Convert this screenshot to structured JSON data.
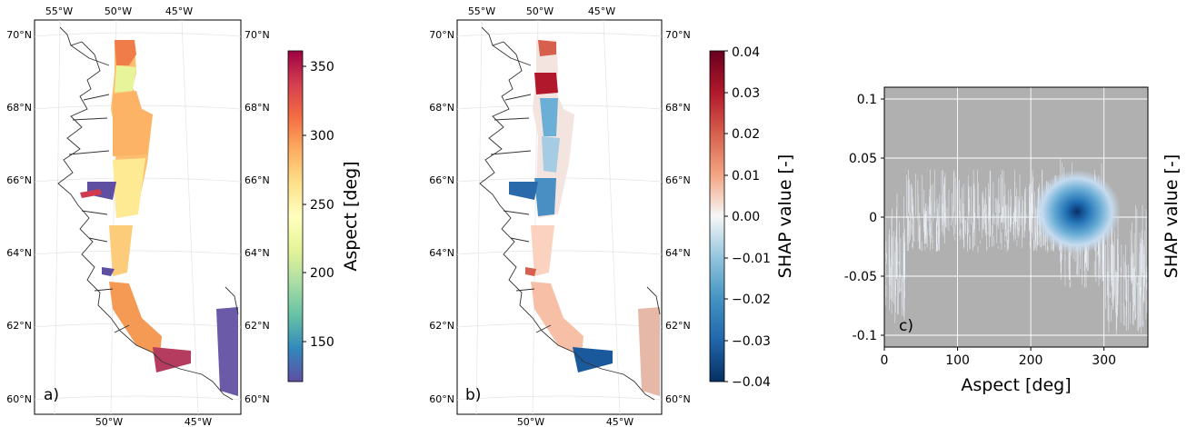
{
  "figure": {
    "panels": [
      {
        "label": "a)",
        "lon_ticks_top": [
          "55°W",
          "50°W",
          "45°W"
        ],
        "lon_ticks_bottom": [
          "50°W",
          "45°W"
        ],
        "lat_ticks": [
          "70°N",
          "68°N",
          "66°N",
          "64°N",
          "62°N",
          "60°N"
        ],
        "colorbar": {
          "label": "Aspect [deg]",
          "ticks": [
            "350",
            "300",
            "250",
            "200",
            "150"
          ],
          "colormap": "Spectral_r",
          "range": [
            120,
            360
          ]
        }
      },
      {
        "label": "b)",
        "lon_ticks_top": [
          "55°W",
          "50°W",
          "45°W"
        ],
        "lon_ticks_bottom": [
          "50°W",
          "45°W"
        ],
        "lat_ticks": [
          "70°N",
          "68°N",
          "66°N",
          "64°N",
          "62°N",
          "60°N"
        ],
        "colorbar": {
          "label": "SHAP value [-]",
          "ticks": [
            "0.04",
            "0.03",
            "0.02",
            "0.01",
            "0.00",
            "−0.01",
            "−0.02",
            "−0.03",
            "−0.04"
          ],
          "colormap": "RdBu_r",
          "range": [
            -0.04,
            0.04
          ]
        }
      }
    ]
  },
  "chart_data": [
    {
      "type": "heatmap",
      "panel": "a)",
      "title": "",
      "colorbar_label": "Aspect [deg]",
      "value_range": [
        120,
        360
      ],
      "regions": [
        {
          "lat": 69.5,
          "aspect": 300
        },
        {
          "lat": 69.0,
          "aspect": 240
        },
        {
          "lat": 68.0,
          "aspect": 280
        },
        {
          "lat": 67.0,
          "aspect": 275
        },
        {
          "lat": 66.2,
          "aspect": 255
        },
        {
          "lat": 65.8,
          "aspect": 150
        },
        {
          "lat": 64.5,
          "aspect": 280
        },
        {
          "lat": 62.5,
          "aspect": 300
        },
        {
          "lat": 61.2,
          "aspect": 140
        }
      ]
    },
    {
      "type": "heatmap",
      "panel": "b)",
      "title": "",
      "colorbar_label": "SHAP value [-]",
      "value_range": [
        -0.04,
        0.04
      ],
      "regions": [
        {
          "lat": 69.5,
          "shap": 0.02
        },
        {
          "lat": 68.8,
          "shap": 0.035
        },
        {
          "lat": 68.0,
          "shap": -0.015
        },
        {
          "lat": 66.8,
          "shap": -0.01
        },
        {
          "lat": 65.5,
          "shap": -0.025
        },
        {
          "lat": 64.0,
          "shap": 0.005
        },
        {
          "lat": 62.5,
          "shap": 0.01
        },
        {
          "lat": 61.0,
          "shap": -0.035
        }
      ]
    },
    {
      "type": "scatter",
      "panel": "c)",
      "title": "",
      "xlabel": "Aspect [deg]",
      "ylabel": "SHAP value [-]",
      "xlim": [
        0,
        360
      ],
      "ylim": [
        -0.11,
        0.11
      ],
      "xticks": [
        "0",
        "100",
        "200",
        "300"
      ],
      "yticks": [
        "0.1",
        "0.05",
        "0",
        "-0.05",
        "-0.1"
      ],
      "grid": true,
      "background": "#b0b0b0",
      "density_peak": {
        "x": 268,
        "y": 0.0
      },
      "point_bands": [
        {
          "x_range": [
            0,
            30
          ],
          "y_range": [
            -0.09,
            0.02
          ]
        },
        {
          "x_range": [
            30,
            240
          ],
          "y_range": [
            -0.03,
            0.04
          ]
        },
        {
          "x_range": [
            240,
            300
          ],
          "y_range": [
            -0.06,
            0.05
          ]
        },
        {
          "x_range": [
            300,
            360
          ],
          "y_range": [
            -0.1,
            0.01
          ]
        }
      ]
    }
  ]
}
